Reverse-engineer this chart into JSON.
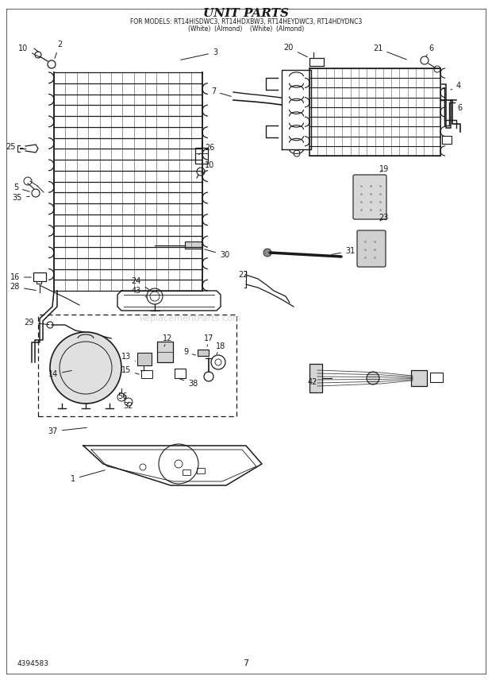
{
  "title": "UNIT PARTS",
  "subtitle1": "FOR MODELS: RT14HISDWC3, RT14HDXBW3, RT14HEYDWC3, RT14HDYDNC3",
  "subtitle2": "(White)  (Almond)    (White)  (Almond)",
  "page_number": "7",
  "catalog_number": "4394583",
  "bg_color": "#ffffff",
  "line_color": "#1a1a1a",
  "label_color": "#1a1a1a",
  "watermark": "ReplacementParts.com",
  "watermark_color": "#bbbbbb"
}
